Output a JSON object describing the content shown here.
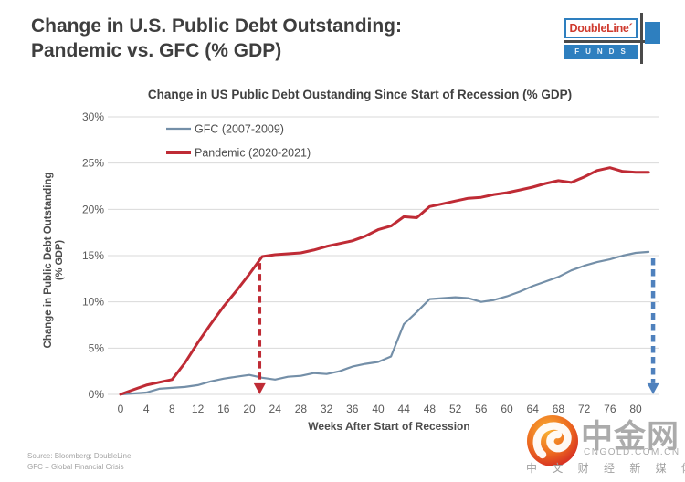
{
  "header": {
    "title_line1": "Change in U.S. Public Debt Outstanding:",
    "title_line2": "Pandemic vs. GFC (% GDP)",
    "logo": {
      "brand": "DoubleLine´",
      "funds": "FUNDS",
      "brand_color": "#cf3a2e",
      "bar_color": "#2e7fbf"
    }
  },
  "chart_data": {
    "type": "line",
    "title": "Change in US Public Debt Oustanding Since Start of Recession (% GDP)",
    "xlabel": "Weeks After Start of Recession",
    "ylabel_line1": "Change in Public Debt Outstanding",
    "ylabel_line2": "(% GDP)",
    "xlim": [
      0,
      83.4
    ],
    "ylim": [
      0,
      30
    ],
    "x_ticks": [
      0,
      4,
      8,
      12,
      16,
      20,
      24,
      28,
      32,
      36,
      40,
      44,
      48,
      52,
      56,
      60,
      64,
      68,
      72,
      76,
      80
    ],
    "y_ticks": [
      0,
      5,
      10,
      15,
      20,
      25,
      30
    ],
    "y_tick_suffix": "%",
    "grid": "horizontal",
    "gridline_color": "#d9d9d9",
    "tick_label_color": "#595959",
    "legend_position": "top-left-inside",
    "x": [
      0,
      2,
      4,
      6,
      8,
      10,
      12,
      14,
      16,
      18,
      20,
      22,
      24,
      26,
      28,
      30,
      32,
      34,
      36,
      38,
      40,
      42,
      44,
      46,
      48,
      50,
      52,
      54,
      56,
      58,
      60,
      62,
      64,
      66,
      68,
      70,
      72,
      74,
      76,
      78,
      80,
      82
    ],
    "series": [
      {
        "name": "GFC (2007-2009)",
        "color": "#748fa8",
        "width": 2.2,
        "values": [
          0,
          0.1,
          0.2,
          0.6,
          0.7,
          0.8,
          1.0,
          1.4,
          1.7,
          1.9,
          2.1,
          1.8,
          1.6,
          1.9,
          2.0,
          2.3,
          2.2,
          2.5,
          3.0,
          3.3,
          3.5,
          4.1,
          7.6,
          8.9,
          10.3,
          10.4,
          10.5,
          10.4,
          10.0,
          10.2,
          10.6,
          11.1,
          11.7,
          12.2,
          12.7,
          13.4,
          13.9,
          14.3,
          14.6,
          15.0,
          15.3,
          15.4
        ]
      },
      {
        "name": "Pandemic (2020-2021)",
        "color": "#bf2b35",
        "width": 3,
        "values": [
          0,
          0.5,
          1.0,
          1.3,
          1.6,
          3.4,
          5.6,
          7.6,
          9.5,
          11.2,
          13.0,
          14.9,
          15.1,
          15.2,
          15.3,
          15.6,
          16.0,
          16.3,
          16.6,
          17.1,
          17.8,
          18.2,
          19.2,
          19.1,
          20.3,
          20.6,
          20.9,
          21.2,
          21.3,
          21.6,
          21.8,
          22.1,
          22.4,
          22.8,
          23.1,
          22.9,
          23.5,
          24.2,
          24.5,
          24.1,
          24.0,
          24.0
        ]
      }
    ],
    "annotations": [
      {
        "id": "pandemic-peak-arrow",
        "type": "arrow-down",
        "x": 21.6,
        "y_from": 14.2,
        "y_to": 1.2,
        "color": "#bf2b35",
        "width": 3.5
      },
      {
        "id": "gfc-end-arrow",
        "type": "arrow-down",
        "x": 82.7,
        "y_from": 14.7,
        "y_to": 1.2,
        "color": "#4f81bd",
        "width": 4.5
      }
    ]
  },
  "footer": {
    "source_line1": "Source: Bloomberg; DoubleLine",
    "source_line2": "GFC = Global Financial Crisis"
  },
  "watermark": {
    "name_cn": "中金网",
    "domain": "CNGOLD.COM.CN",
    "tagline": "中 文 财 经 新 媒 体",
    "logo_colors": [
      "#f9b233",
      "#ed6a1f",
      "#cf1f24"
    ]
  }
}
